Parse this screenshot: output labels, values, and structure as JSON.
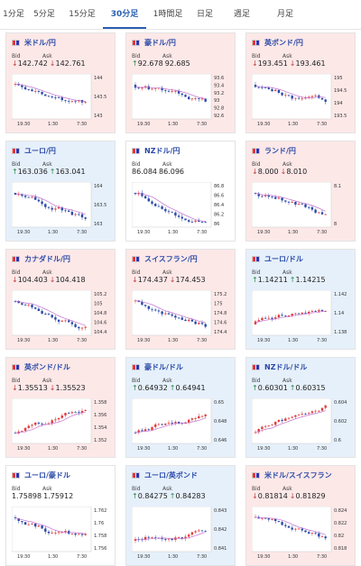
{
  "tabs": [
    {
      "label": "1分足",
      "active": false
    },
    {
      "label": "5分足",
      "active": false
    },
    {
      "label": "15分足",
      "active": false
    },
    {
      "label": "30分足",
      "active": true
    },
    {
      "label": "1時間足",
      "active": false
    },
    {
      "label": "日足",
      "active": false
    },
    {
      "label": "週足",
      "active": false
    },
    {
      "label": "月足",
      "active": false
    }
  ],
  "cards": [
    {
      "title": "米ドル/円",
      "bg": "#fde8e8",
      "bid": "142.742",
      "ask": "142.761",
      "bid_dir": "down",
      "ask_dir": "down",
      "yticks": [
        "144",
        "143.5",
        "143"
      ],
      "xticks": [
        "19:30",
        "1:30",
        "7:30"
      ],
      "trend": "down"
    },
    {
      "title": "豪ドル/円",
      "bg": "#fde8e8",
      "bid": "92.678",
      "ask": "92.685",
      "bid_dir": "up",
      "ask_dir": "none",
      "yticks": [
        "93.6",
        "93.4",
        "93.2",
        "93",
        "92.8",
        "92.6"
      ],
      "xticks": [
        "19:30",
        "1:30",
        "7:30"
      ],
      "trend": "down"
    },
    {
      "title": "英ポンド/円",
      "bg": "#fde8e8",
      "bid": "193.451",
      "ask": "193.461",
      "bid_dir": "down",
      "ask_dir": "down",
      "yticks": [
        "195",
        "194.5",
        "194",
        "193.5"
      ],
      "xticks": [
        "19:30",
        "1:30",
        "7:30"
      ],
      "trend": "down"
    },
    {
      "title": "ユーロ/円",
      "bg": "#e6f0fb",
      "bid": "163.036",
      "ask": "163.041",
      "bid_dir": "up",
      "ask_dir": "up",
      "yticks": [
        "164",
        "163.5",
        "163"
      ],
      "xticks": [
        "19:30",
        "1:30",
        "7:30"
      ],
      "trend": "down"
    },
    {
      "title": "NZドル/円",
      "bg": "#ffffff",
      "bid": "86.084",
      "ask": "86.096",
      "bid_dir": "none",
      "ask_dir": "none",
      "yticks": [
        "86.8",
        "86.6",
        "86.4",
        "86.2",
        "86"
      ],
      "xticks": [
        "19:30",
        "1:30",
        "7:30"
      ],
      "trend": "down"
    },
    {
      "title": "ランド/円",
      "bg": "#fde8e8",
      "bid": "8.000",
      "ask": "8.010",
      "bid_dir": "down",
      "ask_dir": "down",
      "yticks": [
        "8.1",
        "8"
      ],
      "xticks": [
        "19:30",
        "1:30",
        "7:30"
      ],
      "trend": "down"
    },
    {
      "title": "カナダドル/円",
      "bg": "#fde8e8",
      "bid": "104.403",
      "ask": "104.418",
      "bid_dir": "down",
      "ask_dir": "down",
      "yticks": [
        "105.2",
        "105",
        "104.8",
        "104.6",
        "104.4"
      ],
      "xticks": [
        "19:30",
        "1:30",
        "7:30"
      ],
      "trend": "down"
    },
    {
      "title": "スイスフラン/円",
      "bg": "#fde8e8",
      "bid": "174.437",
      "ask": "174.453",
      "bid_dir": "down",
      "ask_dir": "down",
      "yticks": [
        "175.2",
        "175",
        "174.8",
        "174.6",
        "174.4"
      ],
      "xticks": [
        "19:30",
        "1:30",
        "7:30"
      ],
      "trend": "down"
    },
    {
      "title": "ユーロ/ドル",
      "bg": "#e6f0fb",
      "bid": "1.14211",
      "ask": "1.14215",
      "bid_dir": "up",
      "ask_dir": "up",
      "yticks": [
        "1.142",
        "1.14",
        "1.138"
      ],
      "xticks": [
        "19:30",
        "1:30",
        "7:30"
      ],
      "trend": "up"
    },
    {
      "title": "英ポンド/ドル",
      "bg": "#fde8e8",
      "bid": "1.35513",
      "ask": "1.35523",
      "bid_dir": "down",
      "ask_dir": "down",
      "yticks": [
        "1.358",
        "1.356",
        "1.354",
        "1.352"
      ],
      "xticks": [
        "19:30",
        "1:30",
        "7:30"
      ],
      "trend": "up"
    },
    {
      "title": "豪ドル/ドル",
      "bg": "#e6f0fb",
      "bid": "0.64932",
      "ask": "0.64941",
      "bid_dir": "up",
      "ask_dir": "up",
      "yticks": [
        "0.65",
        "0.648",
        "0.646"
      ],
      "xticks": [
        "19:30",
        "1:30",
        "7:30"
      ],
      "trend": "up"
    },
    {
      "title": "NZドル/ドル",
      "bg": "#e6f0fb",
      "bid": "0.60301",
      "ask": "0.60315",
      "bid_dir": "up",
      "ask_dir": "up",
      "yticks": [
        "0.604",
        "0.602",
        "0.6"
      ],
      "xticks": [
        "19:30",
        "1:30",
        "7:30"
      ],
      "trend": "up"
    },
    {
      "title": "ユーロ/豪ドル",
      "bg": "#ffffff",
      "bid": "1.75898",
      "ask": "1.75912",
      "bid_dir": "none",
      "ask_dir": "none",
      "yticks": [
        "1.762",
        "1.76",
        "1.758",
        "1.756"
      ],
      "xticks": [
        "19:30",
        "1:30",
        "7:30"
      ],
      "trend": "down"
    },
    {
      "title": "ユーロ/英ポンド",
      "bg": "#e6f0fb",
      "bid": "0.84275",
      "ask": "0.84283",
      "bid_dir": "up",
      "ask_dir": "up",
      "yticks": [
        "0.843",
        "0.842",
        "0.841"
      ],
      "xticks": [
        "19:30",
        "1:30",
        "7:30"
      ],
      "trend": "up"
    },
    {
      "title": "米ドル/スイスフラン",
      "bg": "#fde8e8",
      "bid": "0.81814",
      "ask": "0.81829",
      "bid_dir": "down",
      "ask_dir": "down",
      "yticks": [
        "0.824",
        "0.822",
        "0.82",
        "0.818"
      ],
      "xticks": [
        "19:30",
        "1:30",
        "7:30"
      ],
      "trend": "down"
    }
  ],
  "labels": {
    "bid": "Bid",
    "ask": "Ask"
  },
  "colors": {
    "up": "#2a8a4a",
    "down": "#c04040",
    "accent": "#2a5fb0",
    "candle_up": "#e03c3c",
    "candle_down": "#2a4aa8",
    "ma": "#c070d0"
  }
}
